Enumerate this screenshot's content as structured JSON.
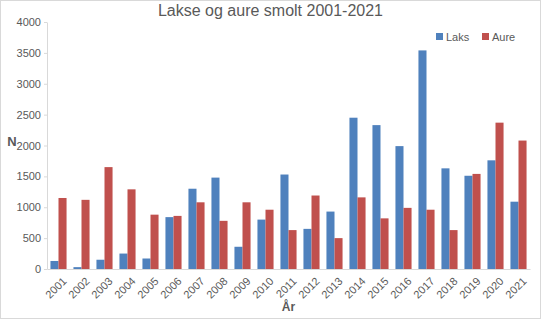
{
  "chart_data": {
    "type": "bar",
    "title": "Lakse og aure smolt 2001-2021",
    "x_label": "År",
    "y_label": "N",
    "categories": [
      "2001",
      "2002",
      "2003",
      "2004",
      "2005",
      "2006",
      "2007",
      "2008",
      "2009",
      "2010",
      "2011",
      "2012",
      "2013",
      "2014",
      "2015",
      "2016",
      "2017",
      "2018",
      "2019",
      "2020",
      "2021"
    ],
    "series": [
      {
        "name": "Laks",
        "color": "#4f81bd",
        "values": [
          130,
          30,
          150,
          250,
          170,
          840,
          1300,
          1480,
          360,
          800,
          1530,
          650,
          930,
          2450,
          2330,
          1990,
          3540,
          1630,
          1510,
          1760,
          1090
        ]
      },
      {
        "name": "Aure",
        "color": "#c0504d",
        "values": [
          1150,
          1120,
          1650,
          1290,
          880,
          860,
          1080,
          780,
          1080,
          960,
          630,
          1190,
          500,
          1160,
          820,
          990,
          960,
          630,
          1540,
          2370,
          2080
        ]
      }
    ],
    "ylim": [
      0,
      4000
    ],
    "yticks": [
      0,
      500,
      1000,
      1500,
      2000,
      2500,
      3000,
      3500,
      4000
    ],
    "grid": false,
    "legend": "top-right"
  }
}
